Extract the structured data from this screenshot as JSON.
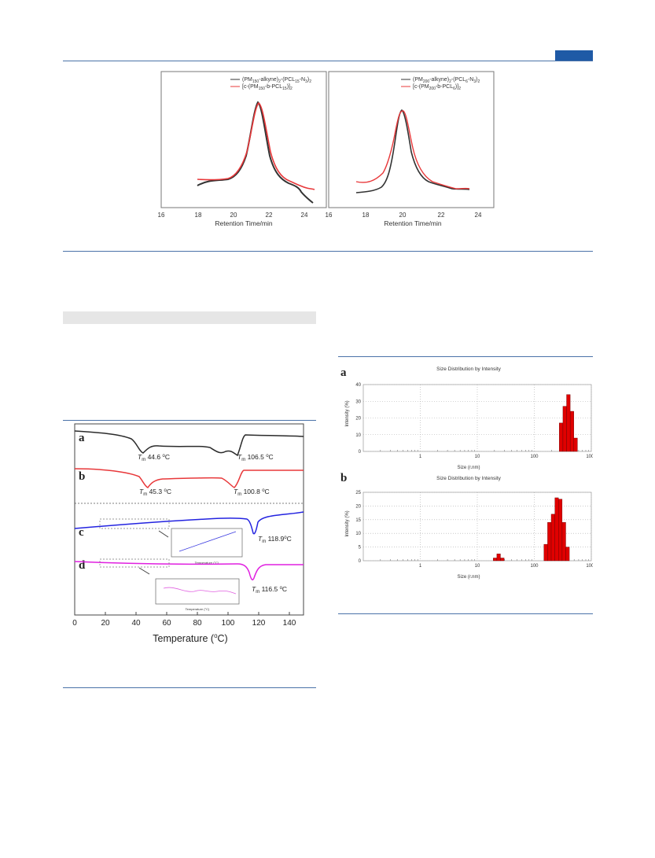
{
  "header": {
    "accent_color": "#1f5aa6"
  },
  "gpc_figure": {
    "left_panel": {
      "legend": [
        {
          "main": "(PM",
          "sub1": "150",
          "mid1": "-alkyne)",
          "sub2": "2",
          "mid2": "-(PCL",
          "sub3": "15",
          "mid3": "-N",
          "sub4": "3",
          "end": ")",
          "sub5": "2",
          "color": "#333333"
        },
        {
          "main": "[c-(PM",
          "sub1": "150",
          "mid1": "-b-PCL",
          "sub2": "15",
          "mid2": ")]",
          "sub3": "2",
          "color": "#e8383a"
        }
      ],
      "xlabel": "Retention Time/min",
      "xticks": [
        "16",
        "18",
        "20",
        "22",
        "24"
      ]
    },
    "right_panel": {
      "legend": [
        {
          "main": "(PM",
          "sub1": "200",
          "mid1": "-alkyne)",
          "sub2": "2",
          "mid2": "-(PCL",
          "sub3": "6",
          "mid3": "-N",
          "sub4": "3",
          "end": ")",
          "sub5": "2",
          "color": "#333333"
        },
        {
          "main": "[c-(PM",
          "sub1": "200",
          "mid1": "-b-PCL",
          "sub2": "6",
          "mid2": ")]",
          "sub3": "2",
          "color": "#e8383a"
        }
      ],
      "xlabel": "Retention Time/min",
      "xticks": [
        "16",
        "18",
        "20",
        "22",
        "24"
      ]
    }
  },
  "dsc_figure": {
    "xlabel": "Temperature (",
    "xlabel_sup": "o",
    "xlabel_end": "C)",
    "xticks": [
      "0",
      "20",
      "40",
      "60",
      "80",
      "100",
      "120",
      "140"
    ],
    "curves": [
      {
        "letter": "a",
        "color": "#2b2b2b",
        "labels": [
          "T",
          "m",
          " 44.6 ",
          "o",
          "C"
        ],
        "labels2": [
          "T",
          "m",
          " 106.5 ",
          "o",
          "C"
        ]
      },
      {
        "letter": "b",
        "color": "#e8383a",
        "labels": [
          "T",
          "m",
          " 45.3 ",
          "o",
          "C"
        ],
        "labels2": [
          "T",
          "m",
          " 100.8 ",
          "o",
          "C"
        ]
      },
      {
        "letter": "c",
        "color": "#2323e0",
        "labels": [
          "T",
          "m",
          " 118.9",
          "o",
          "C"
        ]
      },
      {
        "letter": "d",
        "color": "#e020e0",
        "labels": [
          "T",
          "m",
          " 116.5 ",
          "o",
          "C"
        ]
      }
    ],
    "inset_xlabel": "Temperature (°C)",
    "inset_ticks": [
      "10",
      "20",
      "30",
      "40",
      "50",
      "60"
    ]
  },
  "dls_figure": {
    "panel_a": {
      "letter": "a",
      "title": "Size Distribution by Intensity",
      "ylabel": "Intensity (%)",
      "xlabel": "Size (r.nm)",
      "yticks": [
        "0",
        "10",
        "20",
        "30",
        "40"
      ],
      "xticks": [
        "1",
        "10",
        "100",
        "1000"
      ]
    },
    "panel_b": {
      "letter": "b",
      "title": "Size Distribution by Intensity",
      "ylabel": "Intensity (%)",
      "xlabel": "Size (r.nm)",
      "yticks": [
        "0",
        "5",
        "10",
        "15",
        "20",
        "25"
      ],
      "xticks": [
        "1",
        "10",
        "100",
        "1000"
      ]
    }
  },
  "chart_data": [
    {
      "type": "bar",
      "title": "Size Distribution by Intensity",
      "xlabel": "Size (r.nm)",
      "ylabel": "Intensity (%)",
      "x_scale": "log",
      "xlim": [
        0.1,
        1000
      ],
      "ylim": [
        0,
        40
      ],
      "x": [
        295,
        342,
        396,
        459,
        531
      ],
      "values": [
        17,
        27,
        34,
        24,
        8
      ],
      "color": "#e00000"
    },
    {
      "type": "bar",
      "title": "Size Distribution by Intensity",
      "xlabel": "Size (r.nm)",
      "ylabel": "Intensity (%)",
      "x_scale": "log",
      "xlim": [
        0.1,
        1000
      ],
      "ylim": [
        0,
        25
      ],
      "x": [
        20.5,
        23.7,
        27.5,
        159,
        184,
        213,
        247,
        286,
        331,
        383
      ],
      "values": [
        1,
        2.5,
        1,
        6,
        14,
        17,
        23,
        22.5,
        14,
        5
      ],
      "color": "#e00000"
    }
  ]
}
